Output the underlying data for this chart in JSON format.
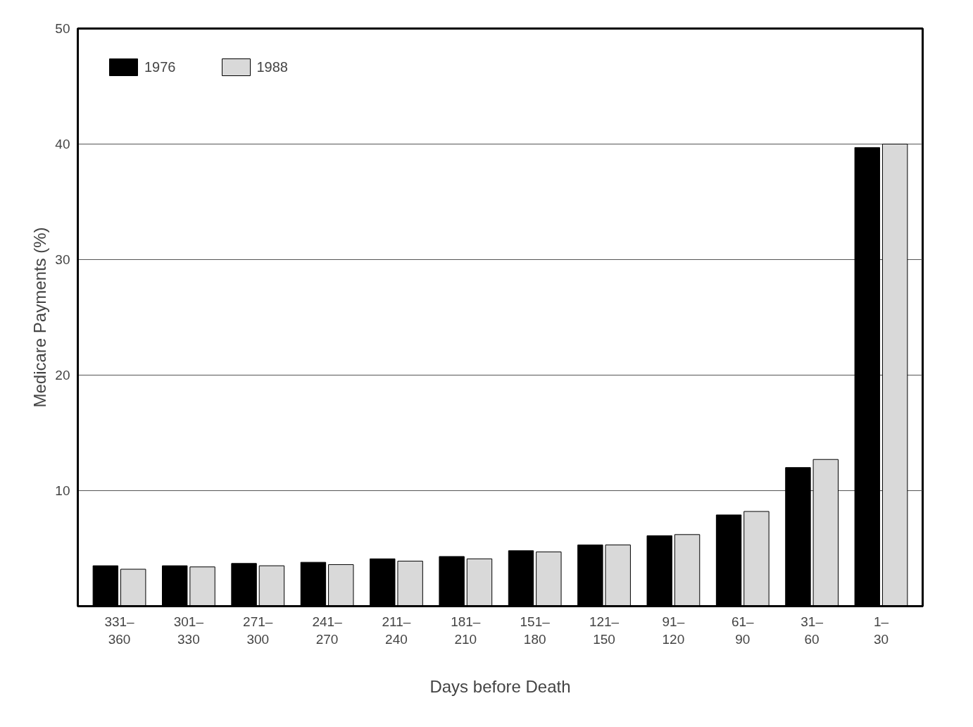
{
  "chart_data": {
    "type": "bar",
    "xlabel": "Days before Death",
    "ylabel": "Medicare Payments (%)",
    "categories": [
      "331–\n360",
      "301–\n330",
      "271–\n300",
      "241–\n270",
      "211–\n240",
      "181–\n210",
      "151–\n180",
      "121–\n150",
      "91–\n120",
      "61–\n90",
      "31–\n60",
      "1–\n30"
    ],
    "series": [
      {
        "name": "1976",
        "color": "#000000",
        "values": [
          3.5,
          3.5,
          3.7,
          3.8,
          4.1,
          4.3,
          4.8,
          5.3,
          6.1,
          7.9,
          12.0,
          39.7
        ]
      },
      {
        "name": "1988",
        "color": "#d9d9d9",
        "values": [
          3.2,
          3.4,
          3.5,
          3.6,
          3.9,
          4.1,
          4.7,
          5.3,
          6.2,
          8.2,
          12.7,
          40.0
        ]
      }
    ],
    "ylim": [
      0,
      50
    ],
    "yticks": [
      10,
      20,
      30,
      40,
      50
    ],
    "grid": "y",
    "legend": "top left"
  }
}
